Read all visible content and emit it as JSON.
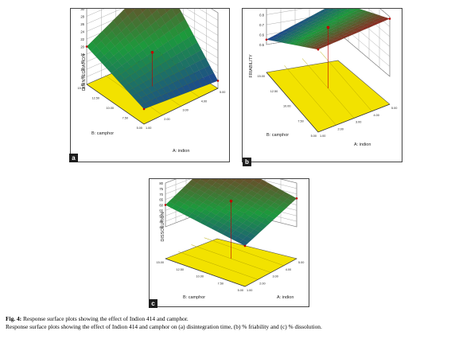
{
  "figure": {
    "caption": {
      "label": "Fig. 4:",
      "title": "Response surface plots showing the effect of Indion 414 and camphor.",
      "description": "Response surface plots showing the effect of Indion 414 and camphor on (a) disintegration time, (b) % friability and (c) % dissolution."
    }
  },
  "chart_data": [
    {
      "panel": "a",
      "type": "surface3d",
      "zlabel": "DISINTEGRATION",
      "xlabel": "A: indion",
      "ylabel": "B: camphor",
      "z_ticks": [
        "10",
        "12",
        "14",
        "16",
        "18",
        "20",
        "22",
        "24",
        "26",
        "28",
        "30"
      ],
      "x_ticks": [
        "1.00",
        "2.00",
        "3.00",
        "4.00",
        "5.00"
      ],
      "y_ticks": [
        "5.00",
        "7.50",
        "10.00",
        "12.50",
        "15.00"
      ],
      "corners": {
        "low_low": 14,
        "high_low": 12,
        "low_high": 20,
        "high_high": 30
      },
      "colors": {
        "low": "#1e2ea8",
        "mid": "#1c9a3c",
        "high": "#9a1e1e",
        "floor": "#f2e200"
      }
    },
    {
      "panel": "b",
      "type": "surface3d",
      "zlabel": "FRIABILITY",
      "xlabel": "A: indion",
      "ylabel": "B: camphor",
      "z_ticks": [
        "0.5",
        "0.6",
        "0.7",
        "0.8",
        "0.9",
        "1",
        "1.1"
      ],
      "x_ticks": [
        "1.00",
        "2.00",
        "3.00",
        "4.00",
        "5.00"
      ],
      "y_ticks": [
        "5.00",
        "7.50",
        "10.00",
        "12.50",
        "15.00"
      ],
      "corners": {
        "low_low": 1.05,
        "high_low": 1.08,
        "low_high": 0.55,
        "high_high": 0.65
      },
      "colors": {
        "low": "#1e2ea8",
        "mid": "#1c9a3c",
        "high": "#9a1e1e",
        "floor": "#f2e200"
      }
    },
    {
      "panel": "c",
      "type": "surface3d",
      "zlabel": "DISSOLUTION",
      "xlabel": "A: indion",
      "ylabel": "B: camphor",
      "z_ticks": [
        "40",
        "45",
        "50",
        "55",
        "60",
        "65",
        "70",
        "75",
        "80"
      ],
      "x_ticks": [
        "1.00",
        "2.00",
        "3.00",
        "4.00",
        "5.00"
      ],
      "y_ticks": [
        "5.00",
        "7.50",
        "10.00",
        "12.50",
        "15.00"
      ],
      "corners": {
        "low_low": 48,
        "high_low": 66,
        "low_high": 60,
        "high_high": 80
      },
      "colors": {
        "low": "#1e2ea8",
        "mid": "#1c9a3c",
        "high": "#9a1e1e",
        "floor": "#f2e200"
      }
    }
  ]
}
